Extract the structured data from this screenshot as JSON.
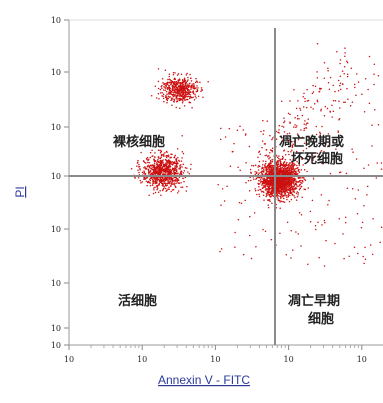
{
  "chart_data": {
    "type": "scatter",
    "xlabel": "Annexin V - FITC",
    "ylabel": "PI",
    "xscale": "log",
    "yscale": "log",
    "xlim": [
      1,
      100000
    ],
    "ylim": [
      1,
      100000
    ],
    "x_tick_labels": [
      "10",
      "10",
      "10",
      "10",
      "10",
      "10"
    ],
    "y_tick_labels": [
      "10",
      "10",
      "10",
      "10",
      "10",
      "10",
      "10",
      "10"
    ],
    "gates": {
      "x": 3200,
      "y": 1800
    },
    "quadrant_labels": {
      "upper_left": "裸核细胞",
      "upper_right": [
        "凋亡晚期或",
        "坏死细胞"
      ],
      "lower_left": "活细胞",
      "lower_right": [
        "凋亡早期",
        "细胞"
      ]
    },
    "populations": [
      {
        "center": [
          75,
          350
        ],
        "spread": [
          0.13,
          0.13
        ],
        "count": 1700
      },
      {
        "center": [
          3.2,
          8500
        ],
        "spread": [
          0.12,
          0.1
        ],
        "count": 500
      },
      {
        "center": [
          1.9,
          460
        ],
        "spread": [
          0.14,
          0.13
        ],
        "count": 800
      }
    ],
    "grid": false,
    "point_color": "#cc1111",
    "gate_line_color": "#8a8a8a"
  }
}
